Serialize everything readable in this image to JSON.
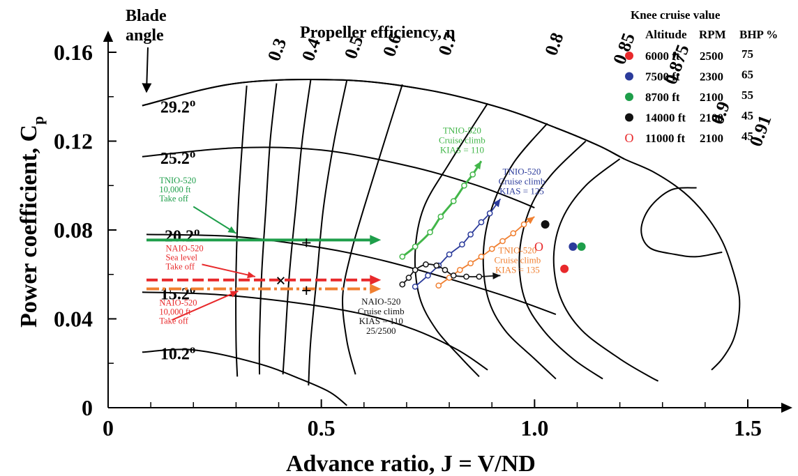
{
  "chart_data": {
    "type": "line",
    "title": "Propeller efficiency, η",
    "xlabel": "Advance ratio, J = V/ND",
    "ylabel_main": "Power coefficient,  C",
    "ylabel_sub": "p",
    "xlim": [
      0,
      1.5
    ],
    "ylim": [
      0,
      0.16
    ],
    "x_ticks": [
      {
        "value": 0,
        "label": "0"
      },
      {
        "value": 0.5,
        "label": "0.5"
      },
      {
        "value": 1.0,
        "label": "1.0"
      },
      {
        "value": 1.5,
        "label": "1.5"
      }
    ],
    "y_ticks": [
      {
        "value": 0,
        "label": "0"
      },
      {
        "value": 0.04,
        "label": "0.04"
      },
      {
        "value": 0.08,
        "label": "0.08"
      },
      {
        "value": 0.12,
        "label": "0.12"
      },
      {
        "value": 0.16,
        "label": "0.16"
      }
    ],
    "grid": false,
    "blade_angle_label": [
      "Blade",
      "angle"
    ],
    "blade_angles": [
      {
        "label": "29.2",
        "points": [
          [
            0.08,
            0.136
          ],
          [
            0.3,
            0.146
          ],
          [
            0.55,
            0.1475
          ],
          [
            0.75,
            0.143
          ],
          [
            0.92,
            0.135
          ],
          [
            1.05,
            0.126
          ],
          [
            1.15,
            0.118
          ],
          [
            1.21,
            0.112
          ]
        ]
      },
      {
        "label": "25.2",
        "points": [
          [
            0.08,
            0.113
          ],
          [
            0.3,
            0.117
          ],
          [
            0.5,
            0.116
          ],
          [
            0.7,
            0.109
          ],
          [
            0.85,
            0.101
          ],
          [
            0.95,
            0.094
          ],
          [
            1.0,
            0.09
          ]
        ]
      },
      {
        "label": "20.2",
        "points": [
          [
            0.09,
            0.078
          ],
          [
            0.3,
            0.077
          ],
          [
            0.5,
            0.072
          ],
          [
            0.65,
            0.066
          ],
          [
            0.8,
            0.058
          ],
          [
            0.95,
            0.049
          ],
          [
            1.05,
            0.042
          ]
        ]
      },
      {
        "label": "15.2",
        "points": [
          [
            0.08,
            0.052
          ],
          [
            0.25,
            0.051
          ],
          [
            0.45,
            0.047
          ],
          [
            0.6,
            0.042
          ],
          [
            0.72,
            0.035
          ],
          [
            0.82,
            0.026
          ],
          [
            0.89,
            0.017
          ]
        ]
      },
      {
        "label": "10.2",
        "points": [
          [
            0.08,
            0.025
          ],
          [
            0.2,
            0.026
          ],
          [
            0.35,
            0.02
          ],
          [
            0.45,
            0.013
          ],
          [
            0.52,
            0.007
          ],
          [
            0.56,
            0.001
          ]
        ]
      }
    ],
    "efficiency_contours": [
      {
        "label": "0.3",
        "label_at": [
          0.4,
          0.1555
        ],
        "points": [
          [
            0.325,
            0.145
          ],
          [
            0.315,
            0.12
          ],
          [
            0.305,
            0.09
          ],
          [
            0.3,
            0.06
          ],
          [
            0.3,
            0.03
          ],
          [
            0.303,
            0.014
          ]
        ]
      },
      {
        "label": "0.4",
        "label_at": [
          0.48,
          0.1555
        ],
        "points": [
          [
            0.395,
            0.146
          ],
          [
            0.38,
            0.12
          ],
          [
            0.37,
            0.09
          ],
          [
            0.36,
            0.06
          ],
          [
            0.355,
            0.03
          ],
          [
            0.355,
            0.015
          ]
        ]
      },
      {
        "label": "0.5",
        "label_at": [
          0.58,
          0.1565
        ],
        "points": [
          [
            0.475,
            0.1475
          ],
          [
            0.455,
            0.12
          ],
          [
            0.44,
            0.09
          ],
          [
            0.425,
            0.06
          ],
          [
            0.415,
            0.03
          ],
          [
            0.41,
            0.015
          ]
        ]
      },
      {
        "label": "0.6",
        "label_at": [
          0.67,
          0.1575
        ],
        "points": [
          [
            0.56,
            0.1475
          ],
          [
            0.53,
            0.12
          ],
          [
            0.505,
            0.09
          ],
          [
            0.49,
            0.06
          ],
          [
            0.475,
            0.03
          ],
          [
            0.47,
            0.01
          ]
        ]
      },
      {
        "label": "0.7",
        "label_at": [
          0.8,
          0.158
        ],
        "points": [
          [
            0.69,
            0.1455
          ],
          [
            0.64,
            0.115
          ],
          [
            0.6,
            0.09
          ],
          [
            0.57,
            0.07
          ],
          [
            0.55,
            0.05
          ],
          [
            0.56,
            0.03
          ],
          [
            0.58,
            0.015
          ]
        ]
      },
      {
        "label": "0.8",
        "label_at": [
          1.05,
          0.158
        ],
        "points": [
          [
            0.89,
            0.137
          ],
          [
            0.8,
            0.11
          ],
          [
            0.74,
            0.09
          ],
          [
            0.72,
            0.07
          ],
          [
            0.73,
            0.05
          ],
          [
            0.77,
            0.035
          ],
          [
            0.83,
            0.022
          ],
          [
            0.87,
            0.014
          ]
        ]
      },
      {
        "label": "0.85",
        "label_at": [
          1.21,
          0.154
        ],
        "points": [
          [
            1.03,
            0.128
          ],
          [
            0.95,
            0.11
          ],
          [
            0.9,
            0.09
          ],
          [
            0.88,
            0.07
          ],
          [
            0.89,
            0.05
          ],
          [
            0.93,
            0.035
          ],
          [
            1.0,
            0.022
          ],
          [
            1.05,
            0.013
          ]
        ]
      },
      {
        "label": "0.875",
        "label_at": [
          1.33,
          0.145
        ],
        "points": [
          [
            1.12,
            0.12
          ],
          [
            1.04,
            0.105
          ],
          [
            0.99,
            0.09
          ],
          [
            0.965,
            0.07
          ],
          [
            0.975,
            0.05
          ],
          [
            1.02,
            0.035
          ],
          [
            1.09,
            0.022
          ],
          [
            1.16,
            0.013
          ]
        ]
      },
      {
        "label": "0.9",
        "label_at": [
          1.44,
          0.127
        ],
        "points": [
          [
            1.2,
            0.112
          ],
          [
            1.12,
            0.1
          ],
          [
            1.065,
            0.085
          ],
          [
            1.045,
            0.068
          ],
          [
            1.06,
            0.05
          ],
          [
            1.11,
            0.035
          ],
          [
            1.2,
            0.022
          ],
          [
            1.27,
            0.014
          ],
          [
            1.29,
            0.012
          ]
        ]
      },
      {
        "label": "0.91",
        "label_at": [
          1.53,
          0.117
        ],
        "points": [
          [
            1.38,
            0.099
          ],
          [
            1.32,
            0.098
          ],
          [
            1.27,
            0.09
          ],
          [
            1.25,
            0.08
          ],
          [
            1.27,
            0.072
          ],
          [
            1.33,
            0.069
          ],
          [
            1.38,
            0.068
          ],
          [
            1.44,
            0.07
          ]
        ]
      }
    ],
    "boundary": [
      [
        0.08,
        0.136
      ],
      [
        0.3,
        0.146
      ],
      [
        0.55,
        0.1475
      ],
      [
        0.75,
        0.143
      ],
      [
        0.92,
        0.135
      ],
      [
        1.05,
        0.126
      ],
      [
        1.15,
        0.118
      ],
      [
        1.21,
        0.112
      ],
      [
        1.28,
        0.106
      ],
      [
        1.35,
        0.097
      ],
      [
        1.4,
        0.087
      ],
      [
        1.44,
        0.075
      ],
      [
        1.465,
        0.062
      ],
      [
        1.48,
        0.05
      ],
      [
        1.478,
        0.04
      ],
      [
        1.465,
        0.03
      ],
      [
        1.44,
        0.022
      ],
      [
        1.415,
        0.017
      ]
    ],
    "knee_legend": {
      "title": "Knee cruise value",
      "headers": [
        "Altitude",
        "RPM",
        "BHP %"
      ],
      "rows": [
        {
          "color": "#e8292b",
          "marker": "dot",
          "symbol": "",
          "altitude": "6000 ft",
          "rpm": "2500",
          "bhp": "75",
          "point": [
            1.07,
            0.0625
          ]
        },
        {
          "color": "#2b3b9b",
          "marker": "dot",
          "symbol": "",
          "altitude": "7500 ft",
          "rpm": "2300",
          "bhp": "65",
          "point": [
            1.09,
            0.0725
          ]
        },
        {
          "color": "#1e9e4a",
          "marker": "dot",
          "symbol": "",
          "altitude": "8700 ft",
          "rpm": "2100",
          "bhp": "55",
          "point": [
            1.11,
            0.0725
          ]
        },
        {
          "color": "#111111",
          "marker": "dot",
          "symbol": "",
          "altitude": "14000 ft",
          "rpm": "2100",
          "bhp": "45",
          "point": [
            1.025,
            0.0825
          ]
        },
        {
          "color": "#e8292b",
          "marker": "ring",
          "symbol": "O",
          "altitude": "11000 ft",
          "rpm": "2100",
          "bhp": "45",
          "point": [
            1.01,
            0.0725
          ]
        }
      ]
    },
    "climb_series": [
      {
        "color": "#42b649",
        "points": [
          [
            0.69,
            0.068
          ],
          [
            0.72,
            0.0725
          ],
          [
            0.755,
            0.079
          ],
          [
            0.78,
            0.086
          ],
          [
            0.81,
            0.093
          ],
          [
            0.835,
            0.1
          ],
          [
            0.855,
            0.105
          ],
          [
            0.875,
            0.111
          ]
        ],
        "markers": [
          [
            0.69,
            0.068
          ],
          [
            0.72,
            0.0725
          ],
          [
            0.755,
            0.079
          ],
          [
            0.78,
            0.086
          ],
          [
            0.81,
            0.093
          ],
          [
            0.835,
            0.1
          ],
          [
            0.855,
            0.105
          ]
        ],
        "label_lines": [
          "TNIO-520",
          "Cruise climb",
          "KIAS = 110"
        ],
        "label_at": [
          0.83,
          0.1235
        ]
      },
      {
        "color": "#2b3b9b",
        "points": [
          [
            0.72,
            0.0545
          ],
          [
            0.75,
            0.0595
          ],
          [
            0.775,
            0.064
          ],
          [
            0.8,
            0.069
          ],
          [
            0.83,
            0.0735
          ],
          [
            0.85,
            0.078
          ],
          [
            0.875,
            0.0835
          ],
          [
            0.895,
            0.0875
          ],
          [
            0.92,
            0.094
          ]
        ],
        "markers": [
          [
            0.72,
            0.0545
          ],
          [
            0.75,
            0.0595
          ],
          [
            0.775,
            0.064
          ],
          [
            0.8,
            0.069
          ],
          [
            0.83,
            0.0735
          ],
          [
            0.85,
            0.078
          ],
          [
            0.875,
            0.0835
          ],
          [
            0.895,
            0.0875
          ]
        ],
        "label_lines": [
          "TNIO-520",
          "Cruise climb",
          "KIAS = 125"
        ],
        "label_at": [
          0.97,
          0.105
        ]
      },
      {
        "color": "#f07f30",
        "points": [
          [
            0.775,
            0.055
          ],
          [
            0.8,
            0.0585
          ],
          [
            0.825,
            0.062
          ],
          [
            0.85,
            0.065
          ],
          [
            0.875,
            0.068
          ],
          [
            0.9,
            0.0715
          ],
          [
            0.925,
            0.075
          ],
          [
            0.95,
            0.0785
          ],
          [
            0.975,
            0.0825
          ],
          [
            1.0,
            0.086
          ]
        ],
        "markers": [
          [
            0.775,
            0.055
          ],
          [
            0.8,
            0.0585
          ],
          [
            0.825,
            0.062
          ],
          [
            0.85,
            0.065
          ],
          [
            0.875,
            0.068
          ],
          [
            0.9,
            0.0715
          ],
          [
            0.925,
            0.075
          ],
          [
            0.95,
            0.0785
          ],
          [
            0.975,
            0.0825
          ]
        ],
        "label_lines": [
          "TNIO-520",
          "Cruise climb",
          "KIAS = 135"
        ],
        "label_at": [
          0.96,
          0.0695
        ]
      },
      {
        "color": "#111111",
        "points": [
          [
            0.69,
            0.0555
          ],
          [
            0.705,
            0.0585
          ],
          [
            0.72,
            0.062
          ],
          [
            0.745,
            0.0645
          ],
          [
            0.77,
            0.064
          ],
          [
            0.79,
            0.062
          ],
          [
            0.81,
            0.0595
          ],
          [
            0.84,
            0.059
          ],
          [
            0.87,
            0.059
          ],
          [
            0.92,
            0.0595
          ]
        ],
        "markers": [
          [
            0.69,
            0.0555
          ],
          [
            0.705,
            0.0585
          ],
          [
            0.72,
            0.062
          ],
          [
            0.745,
            0.0645
          ],
          [
            0.77,
            0.064
          ],
          [
            0.79,
            0.062
          ],
          [
            0.81,
            0.0595
          ],
          [
            0.84,
            0.059
          ],
          [
            0.87,
            0.059
          ]
        ],
        "label_lines": [
          "NAIO-520",
          "Cruise climb",
          "KIAS = 110",
          "25/2500"
        ],
        "label_at": [
          0.64,
          0.0465
        ]
      }
    ],
    "takeoff_lines": [
      {
        "color": "#1e9e4a",
        "style": "solid",
        "width": 4,
        "from": [
          0.09,
          0.0755
        ],
        "to": [
          0.64,
          0.0755
        ]
      },
      {
        "color": "#e8292b",
        "style": "dash",
        "width": 4,
        "from": [
          0.09,
          0.0575
        ],
        "to": [
          0.64,
          0.0575
        ]
      },
      {
        "color": "#f07f30",
        "style": "dashdot",
        "width": 4,
        "from": [
          0.09,
          0.0535
        ],
        "to": [
          0.64,
          0.0535
        ]
      }
    ],
    "takeoff_annotations": [
      {
        "color": "#1e9e4a",
        "lines": [
          "TNIO-520",
          "10,000 ft",
          "Take off"
        ],
        "label_at": [
          0.12,
          0.101
        ],
        "arrow_from": [
          0.2,
          0.0905
        ],
        "arrow_to": [
          0.3,
          0.0785
        ]
      },
      {
        "color": "#e8292b",
        "lines": [
          "NAIO-520",
          "Sea level",
          "Take off"
        ],
        "label_at": [
          0.135,
          0.0705
        ],
        "arrow_from": [
          0.22,
          0.0645
        ],
        "arrow_to": [
          0.345,
          0.059
        ]
      },
      {
        "color": "#e8292b",
        "lines": [
          "NAIO-520",
          "10,000 ft",
          "Take off"
        ],
        "label_at": [
          0.12,
          0.046
        ],
        "arrow_from": [
          0.15,
          0.0395
        ],
        "arrow_to": [
          0.305,
          0.0525
        ]
      }
    ],
    "cross_markers": [
      {
        "symbol": "+",
        "at": [
          0.465,
          0.074
        ]
      },
      {
        "symbol": "×",
        "at": [
          0.405,
          0.057
        ]
      },
      {
        "symbol": "+",
        "at": [
          0.465,
          0.0525
        ]
      }
    ]
  }
}
